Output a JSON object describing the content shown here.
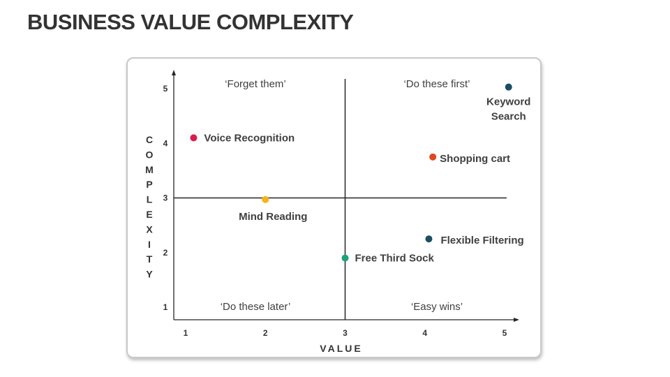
{
  "title": "BUSINESS VALUE COMPLEXITY",
  "chart_data": {
    "type": "scatter",
    "title": "",
    "xlabel": "VALUE",
    "ylabel": "COMPLEXITY",
    "xlim": [
      1,
      5
    ],
    "ylim": [
      1,
      5
    ],
    "xticks": [
      "1",
      "2",
      "3",
      "4",
      "5"
    ],
    "yticks": [
      "1",
      "2",
      "3",
      "4",
      "5"
    ],
    "grid": false,
    "dividers": {
      "x": 3,
      "y": 3
    },
    "quadrants": [
      {
        "position": "top-left",
        "label": "‘Forget them’"
      },
      {
        "position": "top-right",
        "label": "‘Do these first’"
      },
      {
        "position": "bottom-left",
        "label": "‘Do these later’"
      },
      {
        "position": "bottom-right",
        "label": "‘Easy wins’"
      }
    ],
    "points": [
      {
        "label": "Keyword Search",
        "x": 5.05,
        "y": 5.03,
        "color": "#1c4e63"
      },
      {
        "label": "Voice Recognition",
        "x": 1.1,
        "y": 4.1,
        "color": "#d81e4a"
      },
      {
        "label": "Shopping cart",
        "x": 4.1,
        "y": 3.75,
        "color": "#e0481e"
      },
      {
        "label": "Mind Reading",
        "x": 2.0,
        "y": 2.97,
        "color": "#f7b21c"
      },
      {
        "label": "Flexible Filtering",
        "x": 4.05,
        "y": 2.25,
        "color": "#1c4e63"
      },
      {
        "label": "Free Third Sock",
        "x": 3.0,
        "y": 1.9,
        "color": "#1aa37a"
      }
    ]
  }
}
